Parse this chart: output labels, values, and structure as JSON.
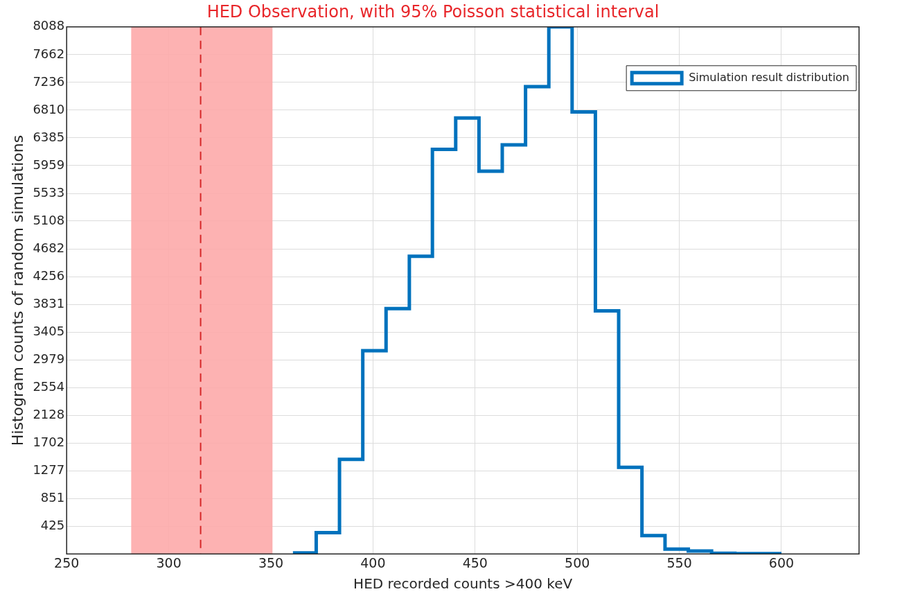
{
  "chart_data": {
    "type": "histogram",
    "title": "HED Observation, with 95% Poisson statistical interval",
    "xlabel": "HED recorded counts >400 keV",
    "ylabel": "Histogram counts of random simulations",
    "bins": [
      360.8,
      372.2,
      383.6,
      395.0,
      406.4,
      417.8,
      429.1,
      440.5,
      451.9,
      463.3,
      474.7,
      486.1,
      497.5,
      508.9,
      520.3,
      531.7,
      543.0,
      554.4,
      565.8,
      577.2,
      588.6,
      600.0
    ],
    "series": [
      {
        "name": "Simulation result distribution",
        "color": "#0072bd",
        "values": [
          15,
          327,
          1452,
          3118,
          3766,
          4569,
          6208,
          6690,
          5873,
          6279,
          7170,
          8088,
          6784,
          3729,
          1328,
          282,
          73,
          45,
          10,
          5,
          5
        ]
      }
    ],
    "xlim": [
      250,
      638
    ],
    "xticks": [
      250,
      300,
      350,
      400,
      450,
      500,
      550,
      600
    ],
    "ylim": [
      0,
      8088
    ],
    "yticks": [
      425,
      851,
      1277,
      1702,
      2128,
      2554,
      2979,
      3405,
      3831,
      4256,
      4682,
      5108,
      5533,
      5959,
      6385,
      6810,
      7236,
      7662,
      8088
    ],
    "bands": [
      {
        "axis": "x",
        "from": 281.6,
        "to": 350.8,
        "color": "#fdaaaa"
      }
    ],
    "ref_lines": [
      {
        "axis": "x",
        "value": 315.6,
        "color": "#d62728",
        "line_style": "dashed"
      }
    ],
    "grid": true,
    "legend": "top right"
  }
}
